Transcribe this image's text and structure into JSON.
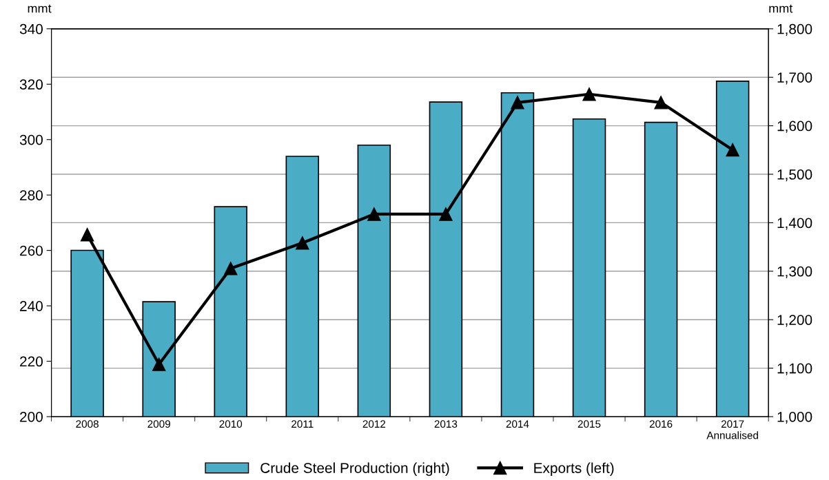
{
  "chart_data": {
    "type": "bar",
    "ylabel": "mmt",
    "y2label": "mmt",
    "categories": [
      "2008",
      "2009",
      "2010",
      "2011",
      "2012",
      "2013",
      "2014",
      "2015",
      "2016",
      "2017\nAnnualised"
    ],
    "series": [
      {
        "name": "Crude Steel Production (right)",
        "axis": "y2",
        "color": "#4bacc6",
        "values": [
          1343,
          1237,
          1433,
          1537,
          1560,
          1649,
          1668,
          1614,
          1607,
          1692
        ]
      },
      {
        "name": "Exports (left)",
        "type": "line",
        "axis": "y",
        "color": "#000000",
        "marker": "triangle",
        "values": [
          265.7,
          218.9,
          253.5,
          262.7,
          273.1,
          273.1,
          313.4,
          316.4,
          313.4,
          296.3
        ]
      }
    ],
    "ylim": [
      200,
      340
    ],
    "yticks": [
      200,
      220,
      240,
      260,
      280,
      300,
      320,
      340
    ],
    "y2lim": [
      1000,
      1800
    ],
    "y2ticks": [
      {
        "value": 1000,
        "label": "1,000"
      },
      {
        "value": 1100,
        "label": "1,100"
      },
      {
        "value": 1200,
        "label": "1,200"
      },
      {
        "value": 1300,
        "label": "1,300"
      },
      {
        "value": 1400,
        "label": "1,400"
      },
      {
        "value": 1500,
        "label": "1,500"
      },
      {
        "value": 1600,
        "label": "1,600"
      },
      {
        "value": 1700,
        "label": "1,700"
      },
      {
        "value": 1800,
        "label": "1,800"
      }
    ],
    "grid": "y",
    "legend": "bottom"
  }
}
